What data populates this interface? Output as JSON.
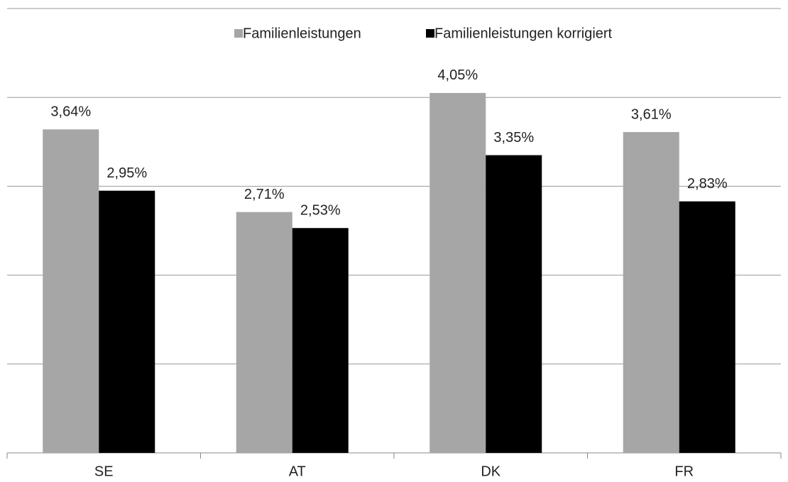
{
  "chart_data": {
    "type": "bar",
    "categories": [
      "SE",
      "AT",
      "DK",
      "FR"
    ],
    "series": [
      {
        "name": "Familienleistungen",
        "color": "#a6a6a6",
        "values": [
          3.64,
          2.71,
          4.05,
          3.61
        ],
        "value_labels": [
          "3,64%",
          "2,71%",
          "4,05%",
          "3,61%"
        ]
      },
      {
        "name": "Familienleistungen korrigiert",
        "color": "#000000",
        "values": [
          2.95,
          2.53,
          3.35,
          2.83
        ],
        "value_labels": [
          "2,95%",
          "2,53%",
          "3,35%",
          "2,83%"
        ]
      }
    ],
    "ylim": [
      0,
      5
    ],
    "yticks": [
      0,
      1,
      2,
      3,
      4,
      5
    ],
    "grid": true,
    "legend": "top"
  }
}
